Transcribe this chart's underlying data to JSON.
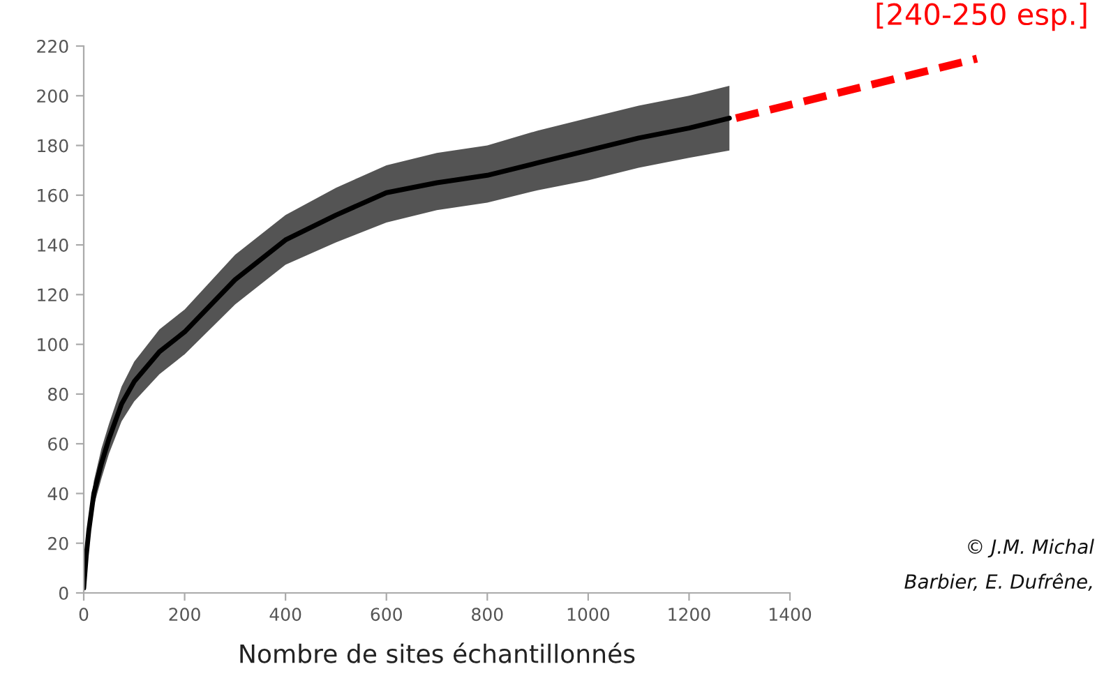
{
  "chart_data": {
    "type": "line",
    "xlabel": "Nombre de sites échantillonnés",
    "x": [
      0,
      5,
      10,
      20,
      35,
      50,
      75,
      100,
      150,
      200,
      300,
      400,
      500,
      600,
      700,
      800,
      900,
      1000,
      1100,
      1200,
      1280
    ],
    "series": [
      {
        "color": "#000000",
        "values": [
          2,
          15,
          25,
          40,
          52,
          62,
          76,
          85,
          97,
          105,
          126,
          142,
          152,
          161,
          165,
          168,
          173,
          178,
          183,
          187,
          191
        ],
        "lower": [
          1,
          12,
          21,
          35,
          46,
          56,
          69,
          77,
          88,
          96,
          116,
          132,
          141,
          149,
          154,
          157,
          162,
          166,
          171,
          175,
          178
        ],
        "upper": [
          3,
          18,
          29,
          45,
          58,
          68,
          83,
          93,
          106,
          114,
          136,
          152,
          163,
          172,
          177,
          180,
          186,
          191,
          196,
          200,
          204
        ]
      }
    ],
    "xlim": [
      0,
      1400
    ],
    "xticks": [
      0,
      200,
      400,
      600,
      800,
      1000,
      1200,
      1400
    ],
    "ylim": [
      0,
      220
    ],
    "yticks": [
      0,
      20,
      40,
      60,
      80,
      100,
      120,
      140,
      160,
      180,
      200,
      220
    ],
    "grid": false,
    "legend": false,
    "line_style": "solid",
    "marker": "none",
    "annotations": [
      "[240-250 esp.]",
      "© J.M. Michal",
      "Barbier, E. Dufrêne,"
    ]
  }
}
